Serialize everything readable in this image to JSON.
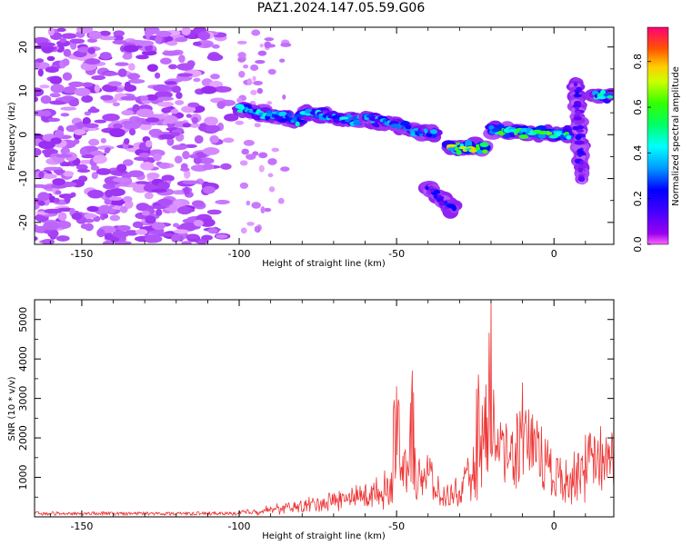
{
  "title": "PAZ1.2024.147.05.59.G06",
  "chart_data": [
    {
      "type": "heatmap",
      "xlabel": "Height of straight line (km)",
      "ylabel": "Frequency (Hz)",
      "xlim": [
        -165,
        19
      ],
      "ylim": [
        -25,
        24.5
      ],
      "xticks": [
        -150,
        -100,
        -50,
        0
      ],
      "yticks": [
        -20,
        -10,
        0,
        10,
        20
      ],
      "colorbar": {
        "label": "Normalized spectral amplitude",
        "range": [
          0,
          0.95
        ],
        "ticks": [
          0.0,
          0.2,
          0.4,
          0.6,
          0.8
        ]
      },
      "features": [
        {
          "x": [
            -165,
            -100
          ],
          "y": [
            -25,
            24
          ],
          "amplitude": 0.1
        },
        {
          "x": [
            -100,
            -80
          ],
          "y": [
            6,
            3
          ],
          "amplitude": 0.5
        },
        {
          "x": [
            -80,
            -60
          ],
          "y": [
            5,
            3
          ],
          "amplitude": 0.45
        },
        {
          "x": [
            -60,
            -38
          ],
          "y": [
            4,
            0
          ],
          "amplitude": 0.4
        },
        {
          "x": [
            -33,
            -22
          ],
          "y": [
            -3,
            -3
          ],
          "amplitude": 0.8
        },
        {
          "x": [
            -20,
            5
          ],
          "y": [
            1,
            0
          ],
          "amplitude": 0.65
        },
        {
          "x": [
            -40,
            -32
          ],
          "y": [
            -12,
            -17
          ],
          "amplitude": 0.3
        },
        {
          "x": [
            7,
            9
          ],
          "y": [
            12,
            -10
          ],
          "amplitude": 0.25
        },
        {
          "x": [
            13,
            18
          ],
          "y": [
            9,
            9
          ],
          "amplitude": 0.5
        }
      ]
    },
    {
      "type": "line",
      "xlabel": "Height of straight line (km)",
      "ylabel": "SNR (10 * v/v)",
      "xlim": [
        -165,
        19
      ],
      "ylim": [
        0,
        5500
      ],
      "xticks": [
        -150,
        -100,
        -50,
        0
      ],
      "yticks": [
        1000,
        2000,
        3000,
        4000,
        5000
      ],
      "color": "#ee3333",
      "envelope": [
        {
          "x": -165,
          "y": 100
        },
        {
          "x": -110,
          "y": 100
        },
        {
          "x": -95,
          "y": 200
        },
        {
          "x": -80,
          "y": 400
        },
        {
          "x": -65,
          "y": 700
        },
        {
          "x": -55,
          "y": 900
        },
        {
          "x": -50,
          "y": 1400
        },
        {
          "x": -46,
          "y": 2500
        },
        {
          "x": -44,
          "y": 1800
        },
        {
          "x": -40,
          "y": 1600
        },
        {
          "x": -36,
          "y": 700
        },
        {
          "x": -30,
          "y": 900
        },
        {
          "x": -25,
          "y": 1700
        },
        {
          "x": -22,
          "y": 3000
        },
        {
          "x": -20,
          "y": 3200
        },
        {
          "x": -18,
          "y": 2700
        },
        {
          "x": -15,
          "y": 2600
        },
        {
          "x": -10,
          "y": 2900
        },
        {
          "x": -5,
          "y": 2600
        },
        {
          "x": 0,
          "y": 1500
        },
        {
          "x": 5,
          "y": 1500
        },
        {
          "x": 10,
          "y": 1900
        },
        {
          "x": 15,
          "y": 2100
        },
        {
          "x": 19,
          "y": 2200
        }
      ],
      "peaks": [
        {
          "x": -50,
          "y": 3300
        },
        {
          "x": -45,
          "y": 3700
        },
        {
          "x": -24,
          "y": 3600
        },
        {
          "x": -20,
          "y": 5500
        },
        {
          "x": -10,
          "y": 3400
        }
      ]
    }
  ]
}
